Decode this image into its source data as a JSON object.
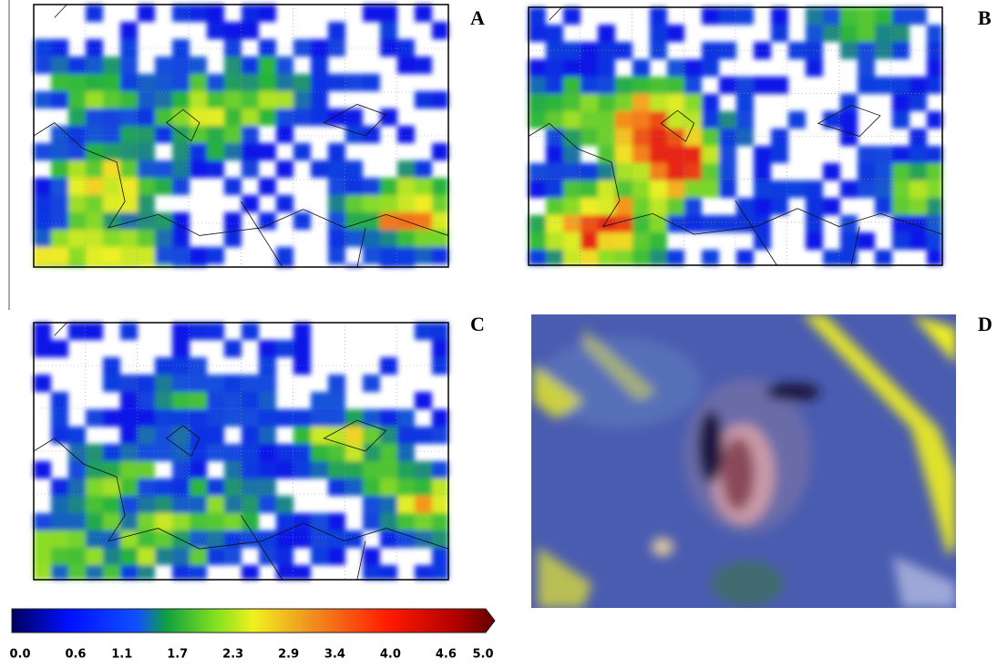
{
  "panels": [
    {
      "label": "A"
    },
    {
      "label": "B"
    },
    {
      "label": "C"
    },
    {
      "label": "D"
    }
  ],
  "colorbar": {
    "ticks": [
      {
        "value": 0,
        "label": "0.0"
      },
      {
        "value": 0.6,
        "label": "0.6"
      },
      {
        "value": 1.1,
        "label": "1.1"
      },
      {
        "value": 1.7,
        "label": "1.7"
      },
      {
        "value": 2.3,
        "label": "2.3"
      },
      {
        "value": 2.9,
        "label": "2.9"
      },
      {
        "value": 3.4,
        "label": "3.4"
      },
      {
        "value": 4,
        "label": "4.0"
      },
      {
        "value": 4.6,
        "label": "4.6"
      },
      {
        "value": 5,
        "label": "5.0"
      }
    ]
  }
}
